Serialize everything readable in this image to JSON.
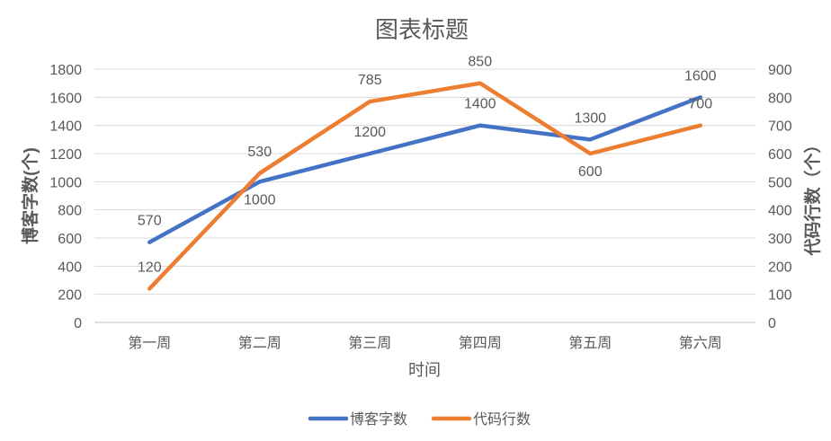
{
  "chart_data": {
    "type": "line",
    "title": "图表标题",
    "xlabel": "时间",
    "ylabel": "博客字数(个)",
    "y2label": "代码行数（个）",
    "categories": [
      "第一周",
      "第二周",
      "第三周",
      "第四周",
      "第五周",
      "第六周"
    ],
    "ylim": [
      0,
      1800
    ],
    "y2lim": [
      0,
      900
    ],
    "yticks": [
      0,
      200,
      400,
      600,
      800,
      1000,
      1200,
      1400,
      1600,
      1800
    ],
    "y2ticks": [
      0,
      100,
      200,
      300,
      400,
      500,
      600,
      700,
      800,
      900
    ],
    "grid": true,
    "legend_position": "bottom",
    "series": [
      {
        "name": "博客字数",
        "axis": "left",
        "color": "#4472C4",
        "values": [
          570,
          1000,
          1200,
          1400,
          1300,
          1600
        ]
      },
      {
        "name": "代码行数",
        "axis": "right",
        "color": "#ED7D31",
        "values": [
          120,
          530,
          785,
          850,
          600,
          700
        ]
      }
    ]
  }
}
